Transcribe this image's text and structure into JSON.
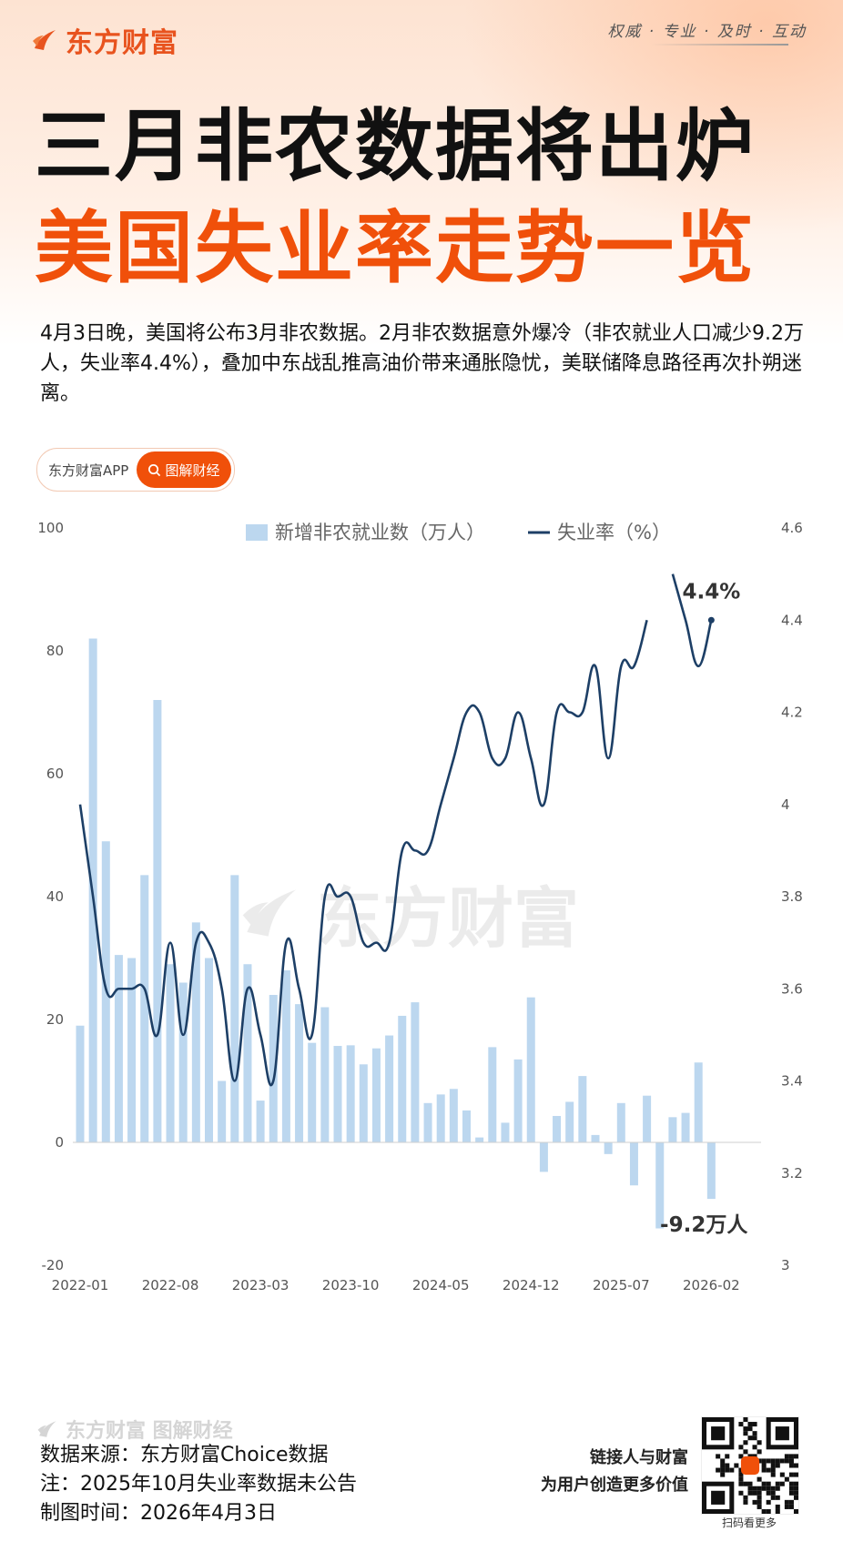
{
  "header": {
    "logo_text": "东方财富",
    "slogan": "权威 · 专业 · 及时 · 互动"
  },
  "title": {
    "line1": "三月非农数据将出炉",
    "line2": "美国失业率走势一览"
  },
  "intro": "4月3日晚，美国将公布3月非农数据。2月非农数据意外爆冷（非农就业人口减少9.2万人，失业率4.4%），叠加中东战乱推高油价带来通胀隐忧，美联储降息路径再次扑朔迷离。",
  "source_pill": {
    "app_label": "东方财富APP",
    "tag_label": "图解财经"
  },
  "colors": {
    "bar": "#bcd7ef",
    "line": "#1d3f66",
    "accent": "#f0500a"
  },
  "chart_data": {
    "type": "bar+line",
    "legend_position": "top",
    "x_tick_labels": [
      "2022-01",
      "2022-08",
      "2023-03",
      "2023-10",
      "2024-05",
      "2024-12",
      "2025-07",
      "2026-02"
    ],
    "y_left": {
      "ticks": [
        "100",
        "80",
        "60",
        "40",
        "20",
        "0",
        "-20"
      ],
      "range": [
        -20,
        100
      ]
    },
    "y_right": {
      "ticks": [
        "4.6",
        "4.4",
        "4.2",
        "4",
        "3.8",
        "3.6",
        "3.4",
        "3.2",
        "3"
      ],
      "range": [
        3.0,
        4.6
      ]
    },
    "series": [
      {
        "name": "新增非农就业数（万人）",
        "type": "bar",
        "values": [
          19,
          82,
          49,
          30.5,
          30,
          43.5,
          72,
          29,
          26,
          35.8,
          30,
          10,
          43.5,
          29,
          6.8,
          24,
          28,
          22.5,
          16.2,
          22,
          15.7,
          15.8,
          12.7,
          15.3,
          17.4,
          20.6,
          22.8,
          6.4,
          7.8,
          8.7,
          5.2,
          0.8,
          15.5,
          3.2,
          13.5,
          23.6,
          -4.8,
          4.3,
          6.6,
          10.8,
          1.2,
          -1.9,
          6.4,
          -7,
          7.6,
          -14,
          4.1,
          4.8,
          13,
          -9.2
        ]
      },
      {
        "name": "失业率（%）",
        "type": "line",
        "values": [
          4.0,
          3.8,
          3.6,
          3.6,
          3.6,
          3.6,
          3.5,
          3.7,
          3.5,
          3.7,
          3.7,
          3.6,
          3.4,
          3.6,
          3.5,
          3.4,
          3.7,
          3.6,
          3.5,
          3.8,
          3.8,
          3.8,
          3.7,
          3.7,
          3.7,
          3.9,
          3.9,
          3.9,
          4.0,
          4.1,
          4.2,
          4.2,
          4.1,
          4.1,
          4.2,
          4.1,
          4.0,
          4.2,
          4.2,
          4.2,
          4.3,
          4.1,
          4.3,
          4.3,
          4.4,
          null,
          4.5,
          4.4,
          4.3,
          4.4
        ]
      }
    ],
    "annotations": [
      {
        "text": "4.4%",
        "series": 1,
        "index": 49
      },
      {
        "text": "-9.2万人",
        "series": 0,
        "index": 49
      }
    ]
  },
  "watermark": "东方财富",
  "footer": {
    "brand": "东方财富 图解财经",
    "source": "数据来源：东方财富Choice数据",
    "note": "注：2025年10月失业率数据未公告",
    "date": "制图时间：2026年4月3日",
    "cta_line1": "链接人与财富",
    "cta_line2": "为用户创造更多价值",
    "qr_caption": "扫码看更多"
  }
}
